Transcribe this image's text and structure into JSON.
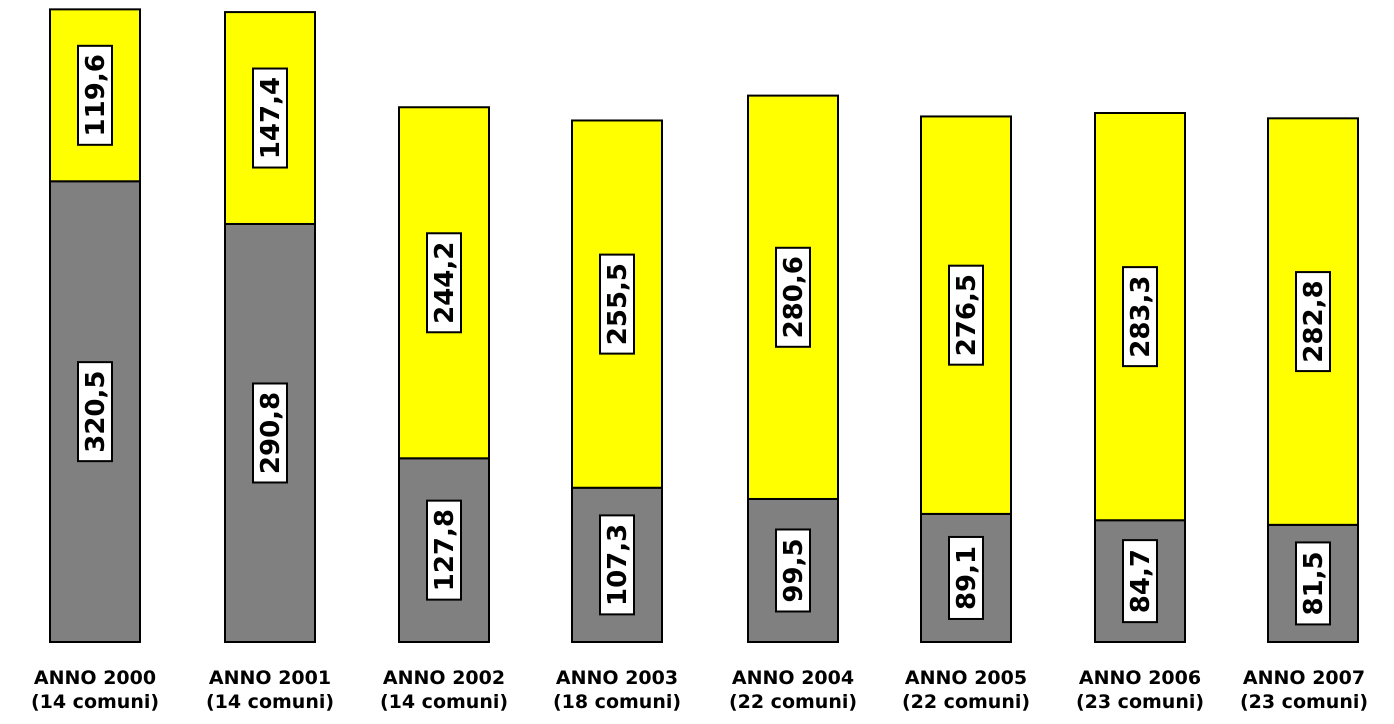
{
  "chart_data": {
    "type": "bar",
    "stacked": true,
    "categories": [
      [
        "ANNO 2000",
        "(14 comuni)"
      ],
      [
        "ANNO 2001",
        "(14 comuni)"
      ],
      [
        "ANNO 2002",
        "(14 comuni)"
      ],
      [
        "ANNO 2003",
        "(18 comuni)"
      ],
      [
        "ANNO 2004",
        "(22 comuni)"
      ],
      [
        "ANNO 2005",
        "(22 comuni)"
      ],
      [
        "ANNO 2006",
        "(23 comuni)"
      ],
      [
        "ANNO 2007",
        "(23 comuni)"
      ]
    ],
    "series": [
      {
        "color": "#808080",
        "values": [
          320.5,
          290.8,
          127.8,
          107.3,
          99.5,
          89.1,
          84.7,
          81.5
        ],
        "labels": [
          "320,5",
          "290,8",
          "127,8",
          "107,3",
          "99,5",
          "89,1",
          "84,7",
          "81,5"
        ]
      },
      {
        "color": "#ffff00",
        "values": [
          119.6,
          147.4,
          244.2,
          255.5,
          280.6,
          276.5,
          283.3,
          282.8
        ],
        "labels": [
          "119,6",
          "147,4",
          "244,2",
          "255,5",
          "280,6",
          "276,5",
          "283,3",
          "282,8"
        ]
      }
    ],
    "title": "",
    "xlabel": "",
    "ylabel": "",
    "ylim": [
      0,
      440
    ],
    "grid": false,
    "legend": "none"
  }
}
